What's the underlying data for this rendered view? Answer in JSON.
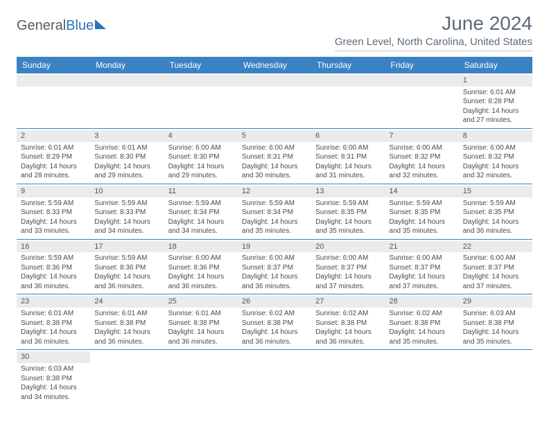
{
  "logo": {
    "part1": "General",
    "part2": "Blue"
  },
  "title": "June 2024",
  "location": "Green Level, North Carolina, United States",
  "colors": {
    "header_bg": "#3a82c4",
    "header_text": "#ffffff",
    "daynum_bg": "#ecebeb",
    "border": "#3a82c4",
    "title_color": "#5a6a78"
  },
  "weekdays": [
    "Sunday",
    "Monday",
    "Tuesday",
    "Wednesday",
    "Thursday",
    "Friday",
    "Saturday"
  ],
  "weeks": [
    [
      {
        "empty": true
      },
      {
        "empty": true
      },
      {
        "empty": true
      },
      {
        "empty": true
      },
      {
        "empty": true
      },
      {
        "empty": true
      },
      {
        "day": "1",
        "sunrise": "Sunrise: 6:01 AM",
        "sunset": "Sunset: 8:28 PM",
        "daylight1": "Daylight: 14 hours",
        "daylight2": "and 27 minutes."
      }
    ],
    [
      {
        "day": "2",
        "sunrise": "Sunrise: 6:01 AM",
        "sunset": "Sunset: 8:29 PM",
        "daylight1": "Daylight: 14 hours",
        "daylight2": "and 28 minutes."
      },
      {
        "day": "3",
        "sunrise": "Sunrise: 6:01 AM",
        "sunset": "Sunset: 8:30 PM",
        "daylight1": "Daylight: 14 hours",
        "daylight2": "and 29 minutes."
      },
      {
        "day": "4",
        "sunrise": "Sunrise: 6:00 AM",
        "sunset": "Sunset: 8:30 PM",
        "daylight1": "Daylight: 14 hours",
        "daylight2": "and 29 minutes."
      },
      {
        "day": "5",
        "sunrise": "Sunrise: 6:00 AM",
        "sunset": "Sunset: 8:31 PM",
        "daylight1": "Daylight: 14 hours",
        "daylight2": "and 30 minutes."
      },
      {
        "day": "6",
        "sunrise": "Sunrise: 6:00 AM",
        "sunset": "Sunset: 8:31 PM",
        "daylight1": "Daylight: 14 hours",
        "daylight2": "and 31 minutes."
      },
      {
        "day": "7",
        "sunrise": "Sunrise: 6:00 AM",
        "sunset": "Sunset: 8:32 PM",
        "daylight1": "Daylight: 14 hours",
        "daylight2": "and 32 minutes."
      },
      {
        "day": "8",
        "sunrise": "Sunrise: 6:00 AM",
        "sunset": "Sunset: 8:32 PM",
        "daylight1": "Daylight: 14 hours",
        "daylight2": "and 32 minutes."
      }
    ],
    [
      {
        "day": "9",
        "sunrise": "Sunrise: 5:59 AM",
        "sunset": "Sunset: 8:33 PM",
        "daylight1": "Daylight: 14 hours",
        "daylight2": "and 33 minutes."
      },
      {
        "day": "10",
        "sunrise": "Sunrise: 5:59 AM",
        "sunset": "Sunset: 8:33 PM",
        "daylight1": "Daylight: 14 hours",
        "daylight2": "and 34 minutes."
      },
      {
        "day": "11",
        "sunrise": "Sunrise: 5:59 AM",
        "sunset": "Sunset: 8:34 PM",
        "daylight1": "Daylight: 14 hours",
        "daylight2": "and 34 minutes."
      },
      {
        "day": "12",
        "sunrise": "Sunrise: 5:59 AM",
        "sunset": "Sunset: 8:34 PM",
        "daylight1": "Daylight: 14 hours",
        "daylight2": "and 35 minutes."
      },
      {
        "day": "13",
        "sunrise": "Sunrise: 5:59 AM",
        "sunset": "Sunset: 8:35 PM",
        "daylight1": "Daylight: 14 hours",
        "daylight2": "and 35 minutes."
      },
      {
        "day": "14",
        "sunrise": "Sunrise: 5:59 AM",
        "sunset": "Sunset: 8:35 PM",
        "daylight1": "Daylight: 14 hours",
        "daylight2": "and 35 minutes."
      },
      {
        "day": "15",
        "sunrise": "Sunrise: 5:59 AM",
        "sunset": "Sunset: 8:35 PM",
        "daylight1": "Daylight: 14 hours",
        "daylight2": "and 36 minutes."
      }
    ],
    [
      {
        "day": "16",
        "sunrise": "Sunrise: 5:59 AM",
        "sunset": "Sunset: 8:36 PM",
        "daylight1": "Daylight: 14 hours",
        "daylight2": "and 36 minutes."
      },
      {
        "day": "17",
        "sunrise": "Sunrise: 5:59 AM",
        "sunset": "Sunset: 8:36 PM",
        "daylight1": "Daylight: 14 hours",
        "daylight2": "and 36 minutes."
      },
      {
        "day": "18",
        "sunrise": "Sunrise: 6:00 AM",
        "sunset": "Sunset: 8:36 PM",
        "daylight1": "Daylight: 14 hours",
        "daylight2": "and 36 minutes."
      },
      {
        "day": "19",
        "sunrise": "Sunrise: 6:00 AM",
        "sunset": "Sunset: 8:37 PM",
        "daylight1": "Daylight: 14 hours",
        "daylight2": "and 36 minutes."
      },
      {
        "day": "20",
        "sunrise": "Sunrise: 6:00 AM",
        "sunset": "Sunset: 8:37 PM",
        "daylight1": "Daylight: 14 hours",
        "daylight2": "and 37 minutes."
      },
      {
        "day": "21",
        "sunrise": "Sunrise: 6:00 AM",
        "sunset": "Sunset: 8:37 PM",
        "daylight1": "Daylight: 14 hours",
        "daylight2": "and 37 minutes."
      },
      {
        "day": "22",
        "sunrise": "Sunrise: 6:00 AM",
        "sunset": "Sunset: 8:37 PM",
        "daylight1": "Daylight: 14 hours",
        "daylight2": "and 37 minutes."
      }
    ],
    [
      {
        "day": "23",
        "sunrise": "Sunrise: 6:01 AM",
        "sunset": "Sunset: 8:38 PM",
        "daylight1": "Daylight: 14 hours",
        "daylight2": "and 36 minutes."
      },
      {
        "day": "24",
        "sunrise": "Sunrise: 6:01 AM",
        "sunset": "Sunset: 8:38 PM",
        "daylight1": "Daylight: 14 hours",
        "daylight2": "and 36 minutes."
      },
      {
        "day": "25",
        "sunrise": "Sunrise: 6:01 AM",
        "sunset": "Sunset: 8:38 PM",
        "daylight1": "Daylight: 14 hours",
        "daylight2": "and 36 minutes."
      },
      {
        "day": "26",
        "sunrise": "Sunrise: 6:02 AM",
        "sunset": "Sunset: 8:38 PM",
        "daylight1": "Daylight: 14 hours",
        "daylight2": "and 36 minutes."
      },
      {
        "day": "27",
        "sunrise": "Sunrise: 6:02 AM",
        "sunset": "Sunset: 8:38 PM",
        "daylight1": "Daylight: 14 hours",
        "daylight2": "and 36 minutes."
      },
      {
        "day": "28",
        "sunrise": "Sunrise: 6:02 AM",
        "sunset": "Sunset: 8:38 PM",
        "daylight1": "Daylight: 14 hours",
        "daylight2": "and 35 minutes."
      },
      {
        "day": "29",
        "sunrise": "Sunrise: 6:03 AM",
        "sunset": "Sunset: 8:38 PM",
        "daylight1": "Daylight: 14 hours",
        "daylight2": "and 35 minutes."
      }
    ],
    [
      {
        "day": "30",
        "sunrise": "Sunrise: 6:03 AM",
        "sunset": "Sunset: 8:38 PM",
        "daylight1": "Daylight: 14 hours",
        "daylight2": "and 34 minutes."
      },
      {
        "empty": true
      },
      {
        "empty": true
      },
      {
        "empty": true
      },
      {
        "empty": true
      },
      {
        "empty": true
      },
      {
        "empty": true
      }
    ]
  ]
}
